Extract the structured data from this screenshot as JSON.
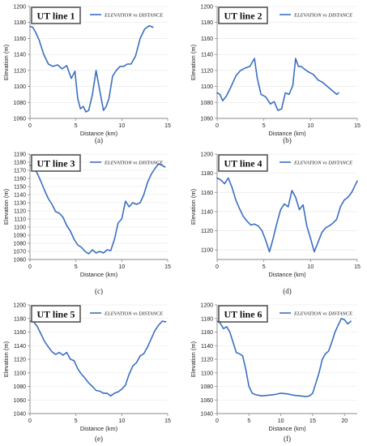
{
  "colors": {
    "series": "#3A6FC1",
    "axis": "#888888",
    "grid": "#e6e6e6",
    "text": "#222222",
    "title_border": "#555555"
  },
  "chart_data": [
    {
      "type": "line",
      "title": "UT line 1",
      "caption": "(a)",
      "xlabel": "Distance (km)",
      "ylabel": "Elevation (m)",
      "xlim": [
        0,
        15
      ],
      "ylim": [
        1060,
        1200
      ],
      "xticks": [
        0,
        5,
        10,
        15
      ],
      "yticks": [
        1060,
        1080,
        1100,
        1120,
        1140,
        1160,
        1180,
        1200
      ],
      "legend_position": "top-right",
      "series": [
        {
          "name": "ELEVATION vs DISTANCE",
          "x": [
            0,
            0.3,
            0.6,
            1.0,
            1.5,
            2.0,
            2.5,
            3.0,
            3.5,
            4.0,
            4.5,
            4.9,
            5.2,
            5.5,
            5.8,
            6.1,
            6.4,
            6.8,
            7.2,
            7.6,
            8.0,
            8.3,
            8.6,
            9.0,
            9.4,
            9.8,
            10.2,
            10.6,
            11.0,
            11.5,
            12.0,
            12.5,
            13.0,
            13.4
          ],
          "y": [
            1175,
            1174,
            1168,
            1158,
            1140,
            1128,
            1125,
            1127,
            1122,
            1126,
            1110,
            1119,
            1085,
            1072,
            1075,
            1068,
            1070,
            1090,
            1120,
            1095,
            1070,
            1075,
            1085,
            1113,
            1120,
            1125,
            1125,
            1128,
            1128,
            1138,
            1160,
            1172,
            1176,
            1174
          ]
        }
      ]
    },
    {
      "type": "line",
      "title": "UT line 2",
      "caption": "(b)",
      "xlabel": "Distance (km)",
      "ylabel": "Elevation (m)",
      "xlim": [
        0,
        15
      ],
      "ylim": [
        1060,
        1200
      ],
      "xticks": [
        0,
        5,
        10,
        15
      ],
      "yticks": [
        1060,
        1080,
        1100,
        1120,
        1140,
        1160,
        1180,
        1200
      ],
      "legend_position": "top-right",
      "series": [
        {
          "name": "ELEVATION vs DISTANCE",
          "x": [
            0,
            0.3,
            0.6,
            1.0,
            1.5,
            2.0,
            2.5,
            3.0,
            3.5,
            4.0,
            4.3,
            4.7,
            5.2,
            5.7,
            6.1,
            6.5,
            6.9,
            7.3,
            7.7,
            8.1,
            8.4,
            8.7,
            9.0,
            9.3,
            9.8,
            10.3,
            10.8,
            11.3,
            11.8,
            12.3,
            12.8,
            13.0
          ],
          "y": [
            1092,
            1090,
            1082,
            1088,
            1100,
            1113,
            1120,
            1123,
            1125,
            1135,
            1110,
            1090,
            1087,
            1078,
            1081,
            1070,
            1072,
            1092,
            1090,
            1101,
            1135,
            1125,
            1125,
            1122,
            1118,
            1115,
            1108,
            1105,
            1100,
            1095,
            1090,
            1092
          ]
        }
      ]
    },
    {
      "type": "line",
      "title": "UT line 3",
      "caption": "(c)",
      "xlabel": "Distance (km)",
      "ylabel": "Elevation (m)",
      "xlim": [
        0,
        15
      ],
      "ylim": [
        1060,
        1190
      ],
      "xticks": [
        0,
        5,
        10,
        15
      ],
      "yticks": [
        1060,
        1070,
        1080,
        1090,
        1100,
        1110,
        1120,
        1130,
        1140,
        1150,
        1160,
        1170,
        1180,
        1190
      ],
      "legend_position": "top-right",
      "series": [
        {
          "name": "ELEVATION vs DISTANCE",
          "x": [
            0,
            0.4,
            0.8,
            1.2,
            1.6,
            2.0,
            2.4,
            2.8,
            3.2,
            3.6,
            4.0,
            4.4,
            4.8,
            5.2,
            5.6,
            6.0,
            6.4,
            6.8,
            7.2,
            7.6,
            8.0,
            8.4,
            8.8,
            9.2,
            9.6,
            10.0,
            10.4,
            10.8,
            11.2,
            11.6,
            12.0,
            12.4,
            12.8,
            13.2,
            13.6,
            14.0,
            14.4,
            14.7
          ],
          "y": [
            1176,
            1175,
            1166,
            1156,
            1145,
            1135,
            1128,
            1119,
            1117,
            1112,
            1102,
            1095,
            1085,
            1078,
            1075,
            1070,
            1067,
            1072,
            1068,
            1070,
            1068,
            1072,
            1071,
            1085,
            1105,
            1110,
            1132,
            1125,
            1130,
            1128,
            1130,
            1140,
            1155,
            1165,
            1172,
            1178,
            1176,
            1174
          ]
        }
      ]
    },
    {
      "type": "line",
      "title": "UT line 4",
      "caption": "(d)",
      "xlabel": "Distance (km)",
      "ylabel": "Elevation (m)",
      "xlim": [
        0,
        15
      ],
      "ylim": [
        1090,
        1200
      ],
      "xticks": [
        0,
        5,
        10,
        15
      ],
      "yticks": [
        1100,
        1120,
        1140,
        1160,
        1180,
        1200
      ],
      "legend_position": "top-right",
      "series": [
        {
          "name": "ELEVATION vs DISTANCE",
          "x": [
            0,
            0.4,
            0.8,
            1.2,
            1.6,
            2.0,
            2.4,
            2.8,
            3.2,
            3.6,
            4.0,
            4.4,
            4.8,
            5.2,
            5.6,
            6.0,
            6.4,
            6.8,
            7.2,
            7.6,
            8.0,
            8.4,
            8.8,
            9.2,
            9.6,
            10.0,
            10.4,
            10.8,
            11.2,
            11.6,
            12.0,
            12.4,
            12.8,
            13.2,
            13.6,
            14.0,
            14.4,
            14.8,
            15.0
          ],
          "y": [
            1175,
            1173,
            1169,
            1175,
            1165,
            1152,
            1143,
            1135,
            1130,
            1126,
            1127,
            1125,
            1120,
            1110,
            1098,
            1112,
            1128,
            1142,
            1148,
            1145,
            1162,
            1155,
            1142,
            1147,
            1125,
            1112,
            1098,
            1108,
            1118,
            1123,
            1125,
            1128,
            1132,
            1145,
            1152,
            1155,
            1160,
            1168,
            1172
          ]
        }
      ]
    },
    {
      "type": "line",
      "title": "UT line 5",
      "caption": "(e)",
      "xlabel": "Distance (km)",
      "ylabel": "Elevation (m)",
      "xlim": [
        0,
        15
      ],
      "ylim": [
        1040,
        1200
      ],
      "xticks": [
        0,
        5,
        10,
        15
      ],
      "yticks": [
        1040,
        1060,
        1080,
        1100,
        1120,
        1140,
        1160,
        1180,
        1200
      ],
      "legend_position": "top-right",
      "series": [
        {
          "name": "ELEVATION vs DISTANCE",
          "x": [
            0,
            0.4,
            0.8,
            1.2,
            1.6,
            2.0,
            2.4,
            2.8,
            3.2,
            3.6,
            4.0,
            4.4,
            4.8,
            5.2,
            5.6,
            6.0,
            6.4,
            6.8,
            7.2,
            7.6,
            8.0,
            8.4,
            8.8,
            9.2,
            9.6,
            10.0,
            10.4,
            10.8,
            11.2,
            11.6,
            12.0,
            12.4,
            12.8,
            13.2,
            13.6,
            14.0,
            14.4,
            14.8
          ],
          "y": [
            1176,
            1175,
            1168,
            1157,
            1146,
            1138,
            1131,
            1127,
            1130,
            1126,
            1130,
            1120,
            1118,
            1106,
            1098,
            1092,
            1085,
            1080,
            1074,
            1073,
            1070,
            1070,
            1066,
            1070,
            1072,
            1076,
            1082,
            1098,
            1110,
            1115,
            1125,
            1128,
            1138,
            1150,
            1162,
            1170,
            1176,
            1175
          ]
        }
      ]
    },
    {
      "type": "line",
      "title": "UT line 6",
      "caption": "(f)",
      "xlabel": "Distance (km)",
      "ylabel": "Elevation (m)",
      "xlim": [
        0,
        22
      ],
      "ylim": [
        1040,
        1200
      ],
      "xticks": [
        0,
        5,
        10,
        15,
        20
      ],
      "yticks": [
        1040,
        1060,
        1080,
        1100,
        1120,
        1140,
        1160,
        1180,
        1200
      ],
      "legend_position": "top-right",
      "series": [
        {
          "name": "ELEVATION vs DISTANCE",
          "x": [
            0,
            0.5,
            1.0,
            1.5,
            2.0,
            2.5,
            3.0,
            3.5,
            4.0,
            4.5,
            5.0,
            5.5,
            6.0,
            7.0,
            8.0,
            9.0,
            10.0,
            11.0,
            12.0,
            13.0,
            14.0,
            14.5,
            15.0,
            15.5,
            16.0,
            16.5,
            17.0,
            17.5,
            18.0,
            18.5,
            19.0,
            19.5,
            20.0,
            20.5,
            21.0
          ],
          "y": [
            1176,
            1173,
            1165,
            1168,
            1160,
            1145,
            1130,
            1128,
            1125,
            1105,
            1080,
            1070,
            1068,
            1066,
            1067,
            1068,
            1070,
            1069,
            1067,
            1066,
            1065,
            1066,
            1070,
            1085,
            1100,
            1120,
            1128,
            1132,
            1145,
            1160,
            1170,
            1180,
            1178,
            1172,
            1176
          ]
        }
      ]
    }
  ]
}
